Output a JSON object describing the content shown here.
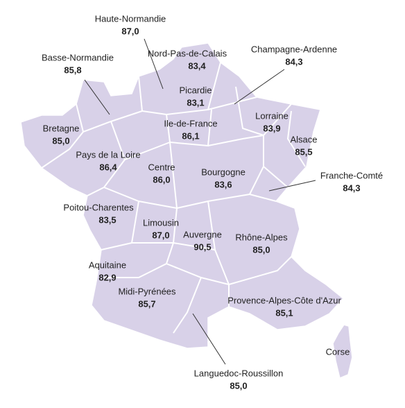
{
  "regions": [
    {
      "name": "Haute-Normandie",
      "value": "87,0"
    },
    {
      "name": "Basse-Normandie",
      "value": "85,8"
    },
    {
      "name": "Nord-Pas-de-Calais",
      "value": "83,4"
    },
    {
      "name": "Champagne-Ardenne",
      "value": "84,3"
    },
    {
      "name": "Picardie",
      "value": "83,1"
    },
    {
      "name": "Lorraine",
      "value": "83,9"
    },
    {
      "name": "Ile-de-France",
      "value": "86,1"
    },
    {
      "name": "Bretagne",
      "value": "85,0"
    },
    {
      "name": "Alsace",
      "value": "85,5"
    },
    {
      "name": "Pays de la Loire",
      "value": "86,4"
    },
    {
      "name": "Centre",
      "value": "86,0"
    },
    {
      "name": "Bourgogne",
      "value": "83,6"
    },
    {
      "name": "Franche-Comté",
      "value": "84,3"
    },
    {
      "name": "Poitou-Charentes",
      "value": "83,5"
    },
    {
      "name": "Limousin",
      "value": "87,0"
    },
    {
      "name": "Auvergne",
      "value": "90,5"
    },
    {
      "name": "Rhône-Alpes",
      "value": "85,0"
    },
    {
      "name": "Aquitaine",
      "value": "82,9"
    },
    {
      "name": "Midi-Pyrénées",
      "value": "85,7"
    },
    {
      "name": "Provence-Alpes-Côte d'Azur",
      "value": "85,1"
    },
    {
      "name": "Corse"
    },
    {
      "name": "Languedoc-Roussillon",
      "value": "85,0"
    }
  ]
}
